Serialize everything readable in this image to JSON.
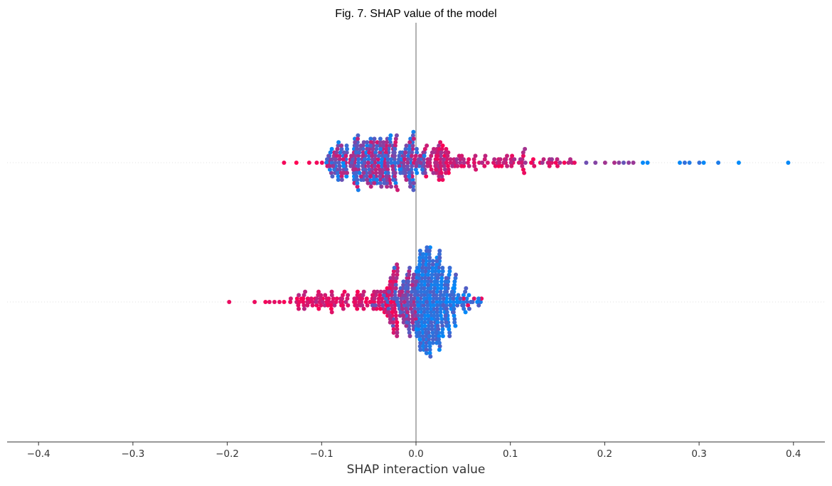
{
  "chart_data": {
    "type": "scatter",
    "subtype": "shap-beeswarm",
    "title": "Fig. 7. SHAP value of the model",
    "xlabel": "SHAP interaction value",
    "ylabel": "",
    "xlim": [
      -0.44,
      0.43
    ],
    "xticks": [
      -0.4,
      -0.3,
      -0.2,
      -0.1,
      0.0,
      0.1,
      0.2,
      0.3,
      0.4
    ],
    "xtick_labels": [
      "−0.4",
      "−0.3",
      "−0.2",
      "−0.1",
      "0.0",
      "0.1",
      "0.2",
      "0.3",
      "0.4"
    ],
    "zero_line": 0.0,
    "grid": false,
    "legend": "none",
    "colors": {
      "low": "#008bfb",
      "high": "#ff0052",
      "zero_line": "#999999",
      "axis": "#333333",
      "row_guide": "#cccccc"
    },
    "series": [
      {
        "row": 1,
        "x_range": [
          -0.14,
          0.394
        ],
        "count": 520,
        "distribution": "dense mode near -0.03 with a long right tail; pink points concentrated at positive values, blue points on the extreme right tail",
        "max_spread": 0.34
      },
      {
        "row": 2,
        "x_range": [
          -0.198,
          0.069
        ],
        "count": 620,
        "distribution": "dense mode near +0.015 (mostly blue); long left tail of pink points down to about -0.2",
        "max_spread": 0.36
      }
    ]
  }
}
